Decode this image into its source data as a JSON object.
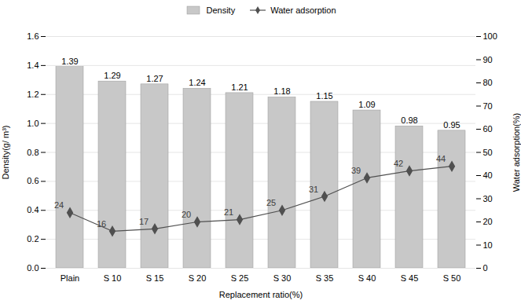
{
  "chart_data": {
    "type": "bar",
    "categories": [
      "Plain",
      "S 10",
      "S 15",
      "S 20",
      "S 25",
      "S 30",
      "S 35",
      "S 40",
      "S 45",
      "S 50"
    ],
    "xlabel": "Replacement ratio(%)",
    "ylabel": "Density(g/ m³)",
    "y2label": "Water adsorption(%)",
    "series": [
      {
        "name": "Density",
        "type": "bar",
        "color": "#c8c8c8",
        "values": [
          1.39,
          1.29,
          1.27,
          1.24,
          1.21,
          1.18,
          1.15,
          1.09,
          0.98,
          0.95
        ]
      },
      {
        "name": "Water adsorption",
        "type": "line",
        "color": "#505050",
        "marker": "diamond",
        "axis": "y2",
        "values": [
          24,
          16,
          17,
          20,
          21,
          25,
          31,
          39,
          42,
          44
        ]
      }
    ],
    "ylim": [
      0,
      1.6
    ],
    "yticks": [
      {
        "value": 0,
        "label": "0.0"
      },
      0.2,
      0.4,
      0.6,
      0.8,
      {
        "value": 1.0,
        "label": "1.0"
      },
      1.2,
      1.4,
      1.6
    ],
    "y2lim": [
      0,
      100
    ],
    "y2ticks": [
      0,
      10,
      20,
      30,
      40,
      50,
      60,
      70,
      80,
      90,
      100
    ],
    "grid": true,
    "legend": "upper center",
    "data_labels": true
  }
}
